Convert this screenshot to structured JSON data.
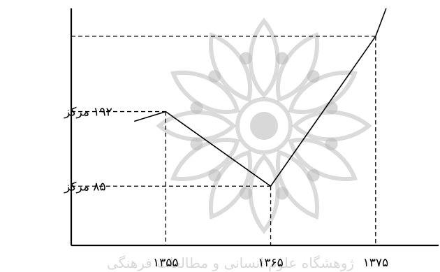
{
  "chart_data": {
    "type": "line",
    "title": "",
    "xlabel": "",
    "ylabel": "",
    "x_ticks": [
      "۱۳۵۵",
      "۱۳۶۵",
      "۱۳۷۵"
    ],
    "y_ticks": [
      "۱۹۲ مرکز",
      "۸۵ مرکز"
    ],
    "series": [
      {
        "x": [
          1352,
          1355,
          1365,
          1375,
          1376
        ],
        "y": [
          178,
          192,
          85,
          300,
          340
        ]
      }
    ],
    "xlim": [
      1346,
      1381
    ],
    "ylim": [
      0,
      340
    ],
    "grid": false,
    "guide_lines": "dashed drop lines from the points at 1355, 1365 and 1375 to both axes"
  },
  "watermark": {
    "text": "ژوهشگاه علوم انسانی و مطالعات فرهنگی"
  }
}
